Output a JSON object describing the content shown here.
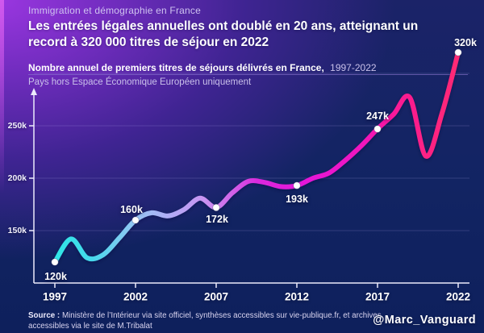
{
  "kicker": "Immigration et démographie en France",
  "title_lines": [
    "Les entrées légales annuelles ont doublé en 20 ans, atteignant un",
    "record à 320 000 titres de séjour en 2022"
  ],
  "subtitle": {
    "bold": "Nombre annuel de premiers titres de séjours délivrés en France,",
    "period": "1997-2022"
  },
  "note": "Pays hors Espace Économique Européen uniquement",
  "source": {
    "label": "Source :",
    "text": "Ministère de l’Intérieur via site officiel, synthèses accessibles sur vie-publique.fr, et archives accessibles via le site de M.Tribalat"
  },
  "handle": "@Marc_Vanguard",
  "colors": {
    "background_top_left": "#9a36e0",
    "background_bottom_right": "#0e2260",
    "axis": "#eceafc",
    "grid": "rgba(200,190,255,0.18)",
    "dot_fill": "#ffffff",
    "line_gradient": [
      {
        "offset": 0.0,
        "color": "#2fe6e6"
      },
      {
        "offset": 0.09,
        "color": "#45d9ec"
      },
      {
        "offset": 0.2,
        "color": "#96c5f4"
      },
      {
        "offset": 0.3,
        "color": "#b5a7f5"
      },
      {
        "offset": 0.37,
        "color": "#c993f2"
      },
      {
        "offset": 0.43,
        "color": "#cf6be9"
      },
      {
        "offset": 0.5,
        "color": "#dc2ade"
      },
      {
        "offset": 0.62,
        "color": "#e414d9"
      },
      {
        "offset": 0.76,
        "color": "#f013be"
      },
      {
        "offset": 0.86,
        "color": "#fa1b92"
      },
      {
        "offset": 1.0,
        "color": "#ff2a74"
      }
    ]
  },
  "chart_data": {
    "type": "line",
    "title": "Nombre annuel de premiers titres de séjours délivrés en France, 1997-2022",
    "subtitle": "Pays hors Espace Économique Européen uniquement",
    "values_unit": "thousands of first residence permits (k)",
    "x": [
      1997,
      1998,
      1999,
      2000,
      2001,
      2002,
      2003,
      2004,
      2005,
      2006,
      2007,
      2008,
      2009,
      2010,
      2011,
      2012,
      2013,
      2014,
      2015,
      2016,
      2017,
      2018,
      2019,
      2020,
      2021,
      2022
    ],
    "values": [
      120,
      142,
      124,
      127,
      143,
      160,
      167,
      164,
      170,
      181,
      172,
      186,
      197,
      196,
      192,
      193,
      200,
      205,
      217,
      231,
      247,
      261,
      277,
      221,
      262,
      320
    ],
    "labeled_points": [
      {
        "year": 1997,
        "value": 120,
        "label": "120k",
        "label_pos": "below"
      },
      {
        "year": 2002,
        "value": 160,
        "label": "160k",
        "label_pos": "above"
      },
      {
        "year": 2007,
        "value": 172,
        "label": "172k",
        "label_pos": "below"
      },
      {
        "year": 2012,
        "value": 193,
        "label": "193k",
        "label_pos": "below"
      },
      {
        "year": 2017,
        "value": 247,
        "label": "247k",
        "label_pos": "above"
      },
      {
        "year": 2022,
        "value": 320,
        "label": "320k",
        "label_pos": "above"
      }
    ],
    "x_ticks": [
      {
        "year": 1997,
        "label": "1997"
      },
      {
        "year": 2002,
        "label": "2002"
      },
      {
        "year": 2007,
        "label": "2007"
      },
      {
        "year": 2012,
        "label": "2012"
      },
      {
        "year": 2017,
        "label": "2017"
      },
      {
        "year": 2022,
        "label": "2022"
      }
    ],
    "y_ticks": [
      {
        "value": 150,
        "label": "150k"
      },
      {
        "value": 200,
        "label": "200k"
      },
      {
        "value": 250,
        "label": "250k"
      }
    ],
    "gridlines": [
      150,
      200,
      250,
      300
    ],
    "xlim": [
      1997,
      2022
    ],
    "ylim": [
      100,
      330
    ],
    "grid": true,
    "legend": "none"
  }
}
